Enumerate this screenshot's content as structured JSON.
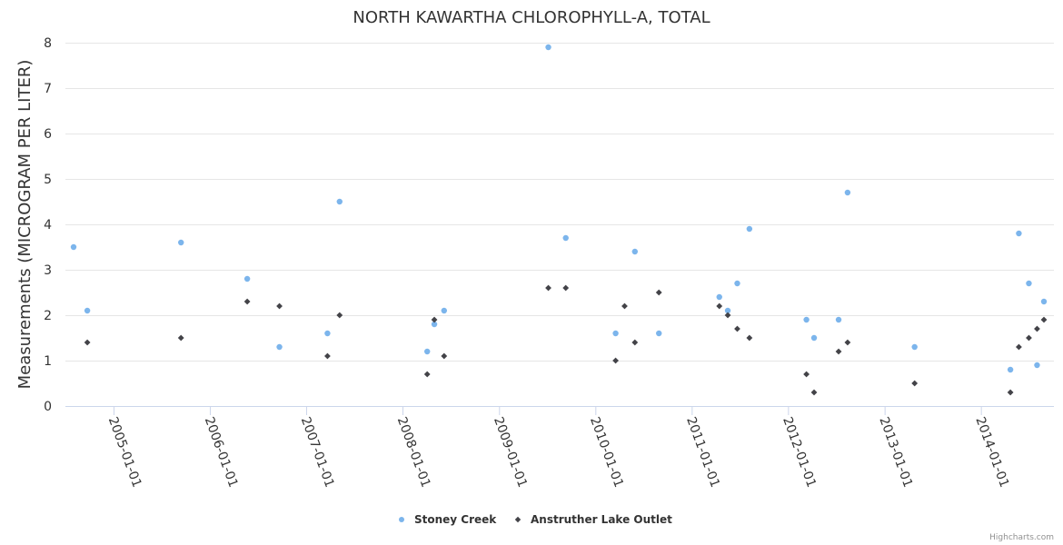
{
  "chart_data": {
    "type": "scatter",
    "title": "NORTH KAWARTHA CHLOROPHYLL-A, TOTAL",
    "xlabel": "",
    "ylabel": "Measurements (MICROGRAM PER LITER)",
    "ylim": [
      0,
      8
    ],
    "yticks": [
      0,
      1,
      2,
      3,
      4,
      5,
      6,
      7,
      8
    ],
    "xlim": [
      "2004-08-01",
      "2014-08-26"
    ],
    "xticks": [
      "2005-01-01",
      "2006-01-01",
      "2007-01-01",
      "2008-01-01",
      "2009-01-01",
      "2010-01-01",
      "2011-01-01",
      "2012-01-01",
      "2013-01-01",
      "2014-01-01"
    ],
    "grid": true,
    "legend": "bottom-center",
    "series": [
      {
        "name": "Stoney Creek",
        "color": "#7cb5ec",
        "marker": "circle",
        "points": [
          {
            "x": "2004-08-01",
            "y": 3.5
          },
          {
            "x": "2004-09-22",
            "y": 2.1
          },
          {
            "x": "2005-09-12",
            "y": 3.6
          },
          {
            "x": "2006-05-21",
            "y": 2.8
          },
          {
            "x": "2006-09-20",
            "y": 1.3
          },
          {
            "x": "2007-03-21",
            "y": 1.6
          },
          {
            "x": "2007-05-06",
            "y": 4.5
          },
          {
            "x": "2008-04-02",
            "y": 1.2
          },
          {
            "x": "2008-04-29",
            "y": 1.8
          },
          {
            "x": "2008-06-05",
            "y": 2.1
          },
          {
            "x": "2009-07-05",
            "y": 7.9
          },
          {
            "x": "2009-09-09",
            "y": 3.7
          },
          {
            "x": "2010-03-17",
            "y": 1.6
          },
          {
            "x": "2010-05-29",
            "y": 3.4
          },
          {
            "x": "2010-08-28",
            "y": 1.6
          },
          {
            "x": "2011-04-14",
            "y": 2.4
          },
          {
            "x": "2011-05-16",
            "y": 2.1
          },
          {
            "x": "2011-06-21",
            "y": 2.7
          },
          {
            "x": "2011-08-06",
            "y": 3.9
          },
          {
            "x": "2012-03-09",
            "y": 1.9
          },
          {
            "x": "2012-04-07",
            "y": 1.5
          },
          {
            "x": "2012-07-09",
            "y": 1.9
          },
          {
            "x": "2012-08-12",
            "y": 4.7
          },
          {
            "x": "2013-04-23",
            "y": 1.3
          },
          {
            "x": "2014-04-21",
            "y": 0.8
          },
          {
            "x": "2014-05-23",
            "y": 3.8
          },
          {
            "x": "2014-06-30",
            "y": 2.7
          },
          {
            "x": "2014-07-31",
            "y": 0.9
          },
          {
            "x": "2014-08-26",
            "y": 2.3
          }
        ]
      },
      {
        "name": "Anstruther Lake Outlet",
        "color": "#434348",
        "marker": "diamond",
        "points": [
          {
            "x": "2004-09-22",
            "y": 1.4
          },
          {
            "x": "2005-09-12",
            "y": 1.5
          },
          {
            "x": "2006-05-21",
            "y": 2.3
          },
          {
            "x": "2006-09-20",
            "y": 2.2
          },
          {
            "x": "2007-03-21",
            "y": 1.1
          },
          {
            "x": "2007-05-06",
            "y": 2.0
          },
          {
            "x": "2008-04-02",
            "y": 0.7
          },
          {
            "x": "2008-04-29",
            "y": 1.9
          },
          {
            "x": "2008-06-05",
            "y": 1.1
          },
          {
            "x": "2009-07-05",
            "y": 2.6
          },
          {
            "x": "2009-09-09",
            "y": 2.6
          },
          {
            "x": "2010-03-17",
            "y": 1.0
          },
          {
            "x": "2010-04-20",
            "y": 2.2
          },
          {
            "x": "2010-05-29",
            "y": 1.4
          },
          {
            "x": "2010-08-28",
            "y": 2.5
          },
          {
            "x": "2011-04-14",
            "y": 2.2
          },
          {
            "x": "2011-05-16",
            "y": 2.0
          },
          {
            "x": "2011-06-21",
            "y": 1.7
          },
          {
            "x": "2011-08-06",
            "y": 1.5
          },
          {
            "x": "2012-03-09",
            "y": 0.7
          },
          {
            "x": "2012-04-07",
            "y": 0.3
          },
          {
            "x": "2012-07-09",
            "y": 1.2
          },
          {
            "x": "2012-08-12",
            "y": 1.4
          },
          {
            "x": "2013-04-23",
            "y": 0.5
          },
          {
            "x": "2014-04-21",
            "y": 0.3
          },
          {
            "x": "2014-05-23",
            "y": 1.3
          },
          {
            "x": "2014-06-30",
            "y": 1.5
          },
          {
            "x": "2014-07-31",
            "y": 1.7
          },
          {
            "x": "2014-08-26",
            "y": 1.9
          }
        ]
      }
    ]
  },
  "credits": "Highcharts.com"
}
